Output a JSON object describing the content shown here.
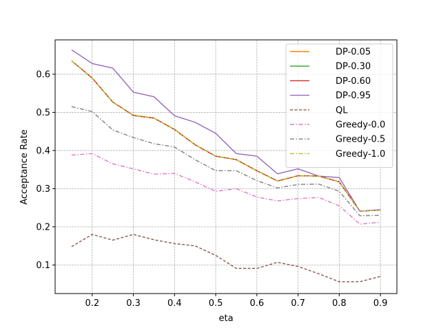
{
  "chart_data": {
    "type": "line",
    "title": "",
    "xlabel": "eta",
    "ylabel": "Acceptance Rate",
    "xlim": [
      0.11,
      0.94
    ],
    "ylim": [
      0.025,
      0.69
    ],
    "x_ticks": [
      0.2,
      0.3,
      0.4,
      0.5,
      0.6,
      0.7,
      0.8,
      0.9
    ],
    "y_ticks": [
      0.1,
      0.2,
      0.3,
      0.4,
      0.5,
      0.6
    ],
    "grid": true,
    "legend_position": "top-right",
    "x": [
      0.15,
      0.2,
      0.25,
      0.3,
      0.35,
      0.4,
      0.45,
      0.5,
      0.55,
      0.6,
      0.65,
      0.7,
      0.75,
      0.8,
      0.85,
      0.9
    ],
    "series": [
      {
        "name": "DP-0.05",
        "color": "#ff7f0e",
        "style": "solid",
        "values": [
          0.635,
          0.59,
          0.527,
          0.492,
          0.485,
          0.455,
          0.415,
          0.385,
          0.376,
          0.347,
          0.32,
          0.334,
          0.333,
          0.318,
          0.241,
          0.244
        ]
      },
      {
        "name": "DP-0.30",
        "color": "#2ca02c",
        "style": "solid",
        "values": [
          0.635,
          0.59,
          0.527,
          0.492,
          0.485,
          0.455,
          0.415,
          0.385,
          0.376,
          0.347,
          0.32,
          0.334,
          0.333,
          0.318,
          0.241,
          0.244
        ]
      },
      {
        "name": "DP-0.60",
        "color": "#d62728",
        "style": "solid",
        "values": [
          0.635,
          0.59,
          0.527,
          0.492,
          0.485,
          0.455,
          0.415,
          0.385,
          0.376,
          0.347,
          0.32,
          0.334,
          0.333,
          0.318,
          0.241,
          0.244
        ]
      },
      {
        "name": "DP-0.95",
        "color": "#9467bd",
        "style": "solid",
        "values": [
          0.664,
          0.628,
          0.616,
          0.553,
          0.541,
          0.491,
          0.474,
          0.445,
          0.392,
          0.385,
          0.339,
          0.352,
          0.333,
          0.329,
          0.241,
          0.245
        ]
      },
      {
        "name": "QL",
        "color": "#8c564b",
        "style": "dashed",
        "values": [
          0.148,
          0.18,
          0.165,
          0.18,
          0.166,
          0.156,
          0.15,
          0.125,
          0.091,
          0.091,
          0.107,
          0.096,
          0.077,
          0.056,
          0.056,
          0.07
        ]
      },
      {
        "name": "Greedy-0.0",
        "color": "#e377c2",
        "style": "dashdot",
        "values": [
          0.388,
          0.392,
          0.365,
          0.352,
          0.338,
          0.34,
          0.318,
          0.293,
          0.3,
          0.278,
          0.268,
          0.274,
          0.277,
          0.255,
          0.207,
          0.212
        ]
      },
      {
        "name": "Greedy-0.5",
        "color": "#7f7f7f",
        "style": "dashdot",
        "values": [
          0.515,
          0.502,
          0.454,
          0.434,
          0.418,
          0.409,
          0.376,
          0.347,
          0.347,
          0.321,
          0.302,
          0.311,
          0.312,
          0.293,
          0.229,
          0.23
        ]
      },
      {
        "name": "Greedy-1.0",
        "color": "#bcbd22",
        "style": "dashdot",
        "values": [
          0.635,
          0.59,
          0.527,
          0.492,
          0.485,
          0.455,
          0.415,
          0.385,
          0.376,
          0.347,
          0.32,
          0.334,
          0.333,
          0.318,
          0.241,
          0.244
        ]
      }
    ]
  }
}
